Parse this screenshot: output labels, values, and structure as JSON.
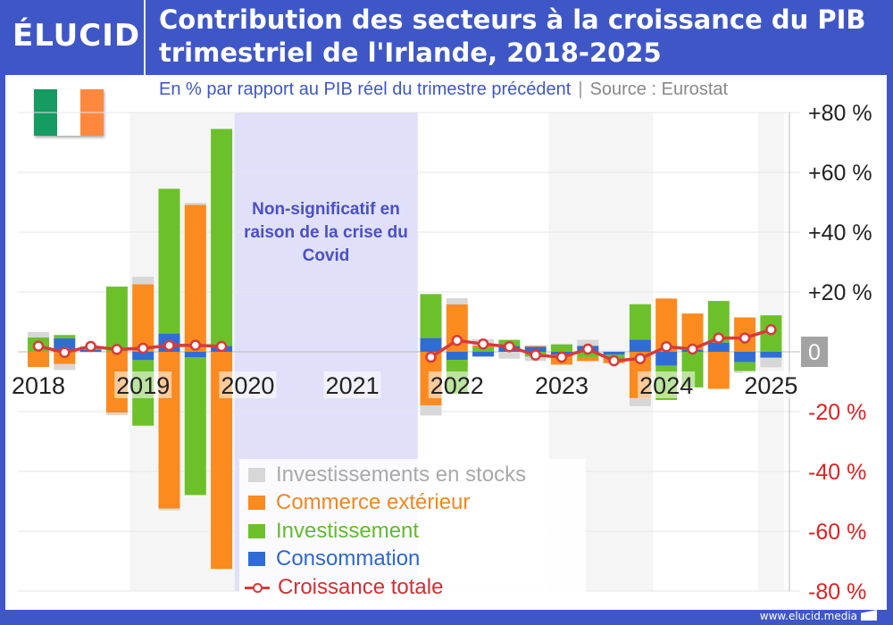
{
  "header": {
    "logo": "ÉLUCID",
    "title": "Contribution des secteurs à la croissance du PIB trimestriel de l'Irlande, 2018-2025",
    "subtitle": "En % par rapport au PIB réel du trimestre précédent",
    "source": "Source : Eurostat",
    "flag_colors": [
      "#169b62",
      "#ffffff",
      "#ff883e"
    ]
  },
  "footer": {
    "url": "www.elucid.media"
  },
  "colors": {
    "frame": "#3f57c6"
  },
  "chart_data": {
    "type": "bar",
    "stacked": true,
    "title": "Contribution des secteurs à la croissance du PIB trimestriel de l'Irlande, 2018-2025",
    "ylabel": "En % par rapport au PIB réel du trimestre précédent",
    "ylim": [
      -80,
      80
    ],
    "y_ticks": [
      "+80 %",
      "+60 %",
      "+40 %",
      "+20 %",
      "0",
      "-20 %",
      "-40 %",
      "-60 %",
      "-80 %"
    ],
    "y_tick_values": [
      80,
      60,
      40,
      20,
      0,
      -20,
      -40,
      -60,
      -80
    ],
    "y_axis_position": "right",
    "grid": true,
    "legend_position": "bottom-center",
    "x_year_labels": [
      "2018",
      "2019",
      "2020",
      "2021",
      "2022",
      "2023",
      "2024",
      "2025"
    ],
    "x": [
      "2018-Q1",
      "2018-Q2",
      "2018-Q3",
      "2018-Q4",
      "2019-Q1",
      "2019-Q2",
      "2019-Q3",
      "2019-Q4",
      "2020-Q1",
      "2020-Q2",
      "2020-Q3",
      "2020-Q4",
      "2021-Q1",
      "2021-Q2",
      "2021-Q3",
      "2021-Q4",
      "2022-Q1",
      "2022-Q2",
      "2022-Q3",
      "2022-Q4",
      "2023-Q1",
      "2023-Q2",
      "2023-Q3",
      "2023-Q4",
      "2024-Q1",
      "2024-Q2",
      "2024-Q3",
      "2024-Q4",
      "2025-Q1"
    ],
    "annotation": "Non-significatif en raison de la crise du Covid",
    "annotation_range": [
      "2020-Q1",
      "2021-Q3"
    ],
    "series": [
      {
        "name": "Consommation",
        "color": "#2f6dd5",
        "kind": "bar",
        "values": [
          0.0,
          4.5,
          0.6,
          0.0,
          -2.8,
          6.1,
          -1.9,
          2.0,
          null,
          null,
          null,
          null,
          null,
          null,
          null,
          4.6,
          -2.7,
          -1.6,
          2.0,
          1.7,
          -0.9,
          2.0,
          -1.0,
          4.1,
          -4.7,
          0.7,
          3.1,
          -3.5,
          -2.0
        ]
      },
      {
        "name": "Investissement",
        "color": "#6cc12a",
        "kind": "bar",
        "values": [
          4.8,
          1.1,
          1.2,
          21.8,
          -21.9,
          48.4,
          -46.0,
          72.5,
          null,
          null,
          null,
          null,
          null,
          null,
          null,
          14.7,
          -11.3,
          1.5,
          2.0,
          -1.6,
          2.5,
          -1.8,
          -1.3,
          11.8,
          -11.4,
          -11.9,
          13.9,
          -2.9,
          12.2
        ]
      },
      {
        "name": "Commerce extérieur",
        "color": "#fb8a1f",
        "kind": "bar",
        "values": [
          -5.1,
          -4.1,
          0.0,
          -20.3,
          22.6,
          -52.4,
          49.1,
          -72.6,
          null,
          null,
          null,
          null,
          null,
          null,
          null,
          -17.9,
          15.9,
          0.6,
          0.0,
          0.3,
          -3.4,
          -1.3,
          -1.5,
          -15.5,
          17.8,
          12.1,
          -12.4,
          11.5,
          0.0
        ]
      },
      {
        "name": "Investissements en stocks",
        "color": "#d7d7d7",
        "kind": "bar",
        "values": [
          1.8,
          -2.0,
          0.0,
          -0.9,
          2.5,
          -0.6,
          0.7,
          0.0,
          null,
          null,
          null,
          null,
          null,
          null,
          null,
          -3.4,
          2.0,
          2.1,
          -2.3,
          -1.5,
          0.0,
          2.0,
          0.4,
          -2.7,
          0.0,
          0.0,
          0.0,
          -0.7,
          -3.2
        ]
      },
      {
        "name": "Croissance totale",
        "color": "#d93a3a",
        "kind": "line",
        "values": [
          1.9,
          -0.2,
          1.8,
          0.8,
          1.2,
          2.1,
          2.2,
          1.8,
          null,
          null,
          null,
          null,
          null,
          null,
          null,
          -1.8,
          3.8,
          2.6,
          1.7,
          -1.1,
          -1.8,
          0.9,
          -3.0,
          -2.3,
          1.7,
          0.9,
          4.6,
          4.6,
          7.4
        ]
      }
    ],
    "legend_order": [
      "Investissements en stocks",
      "Commerce extérieur",
      "Investissement",
      "Consommation",
      "Croissance totale"
    ],
    "legend_text_colors": [
      "#a9a9a9",
      "#f08722",
      "#62bb2c",
      "#2f68c8",
      "#cf3131"
    ]
  }
}
